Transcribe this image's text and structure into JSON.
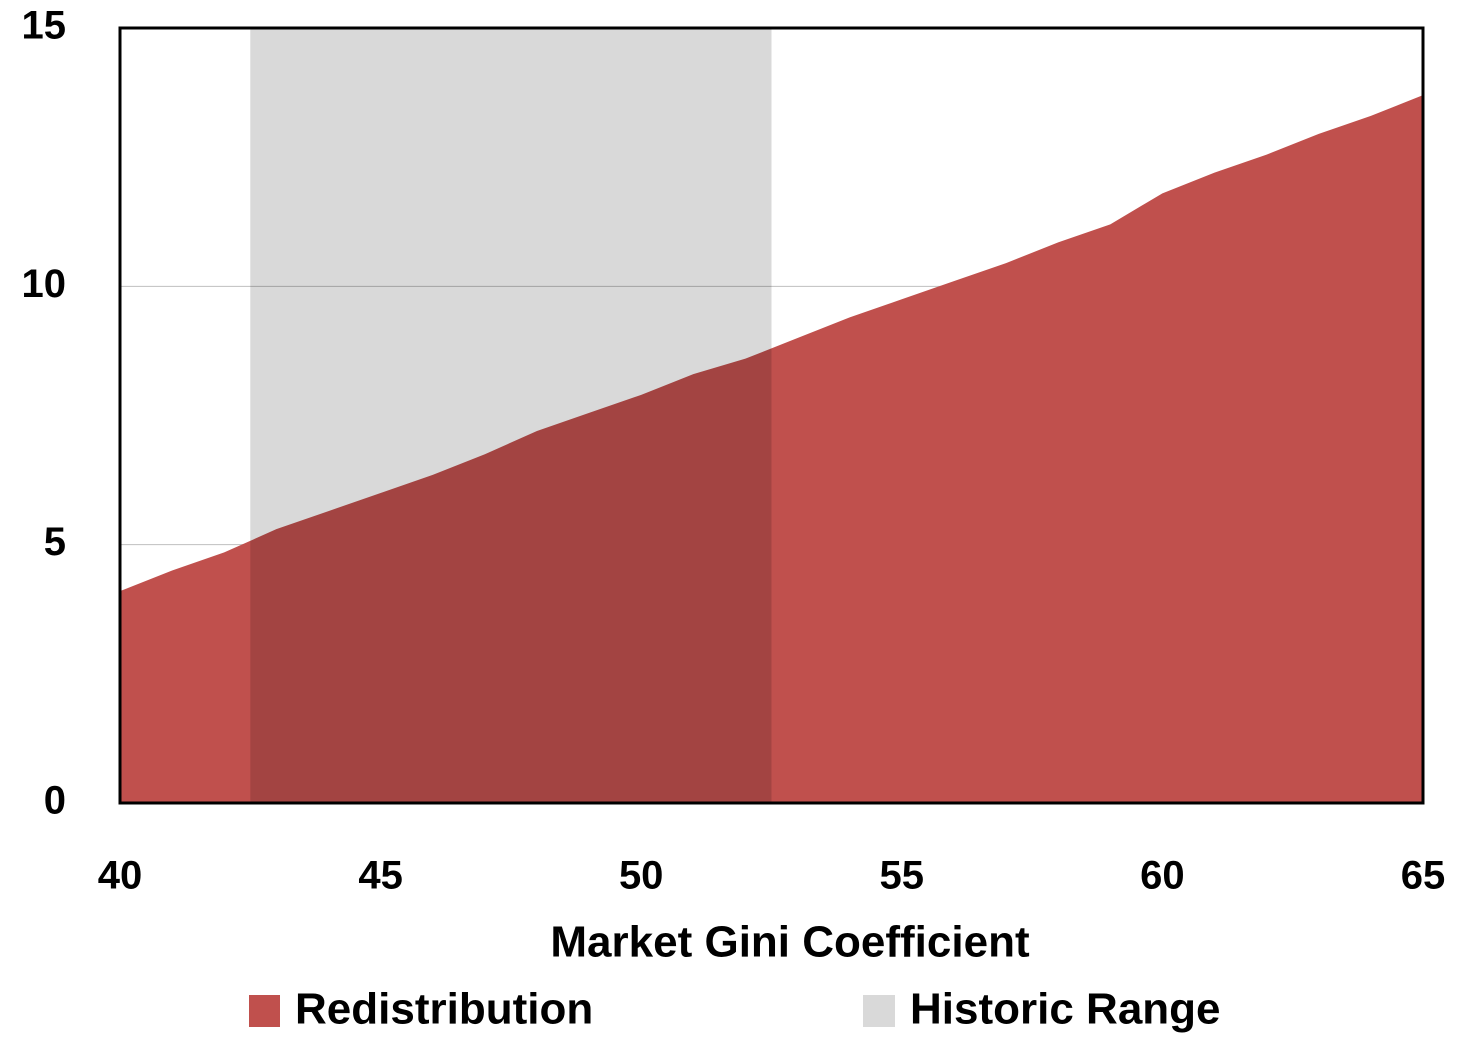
{
  "chart_data": {
    "type": "area",
    "x": [
      40,
      41,
      42,
      43,
      44,
      45,
      46,
      47,
      48,
      49,
      50,
      51,
      52,
      53,
      54,
      55,
      56,
      57,
      58,
      59,
      60,
      61,
      62,
      63,
      64,
      65
    ],
    "series": [
      {
        "name": "Redistribution",
        "color": "#c0504d",
        "values": [
          4.1,
          4.5,
          4.85,
          5.3,
          5.65,
          6.0,
          6.35,
          6.75,
          7.2,
          7.55,
          7.9,
          8.3,
          8.6,
          9.0,
          9.4,
          9.75,
          10.1,
          10.45,
          10.85,
          11.2,
          11.8,
          12.2,
          12.55,
          12.95,
          13.3,
          13.7
        ]
      }
    ],
    "historic_range": {
      "name": "Historic Range",
      "color": "#d9d9d9",
      "range": [
        42.5,
        52.5
      ]
    },
    "xlabel": "Market Gini Coefficient",
    "xlim": [
      40,
      65
    ],
    "xticks": [
      40,
      45,
      50,
      55,
      60,
      65
    ],
    "ylim": [
      0,
      15
    ],
    "yticks": [
      0,
      5,
      10,
      15
    ],
    "grid": true
  }
}
